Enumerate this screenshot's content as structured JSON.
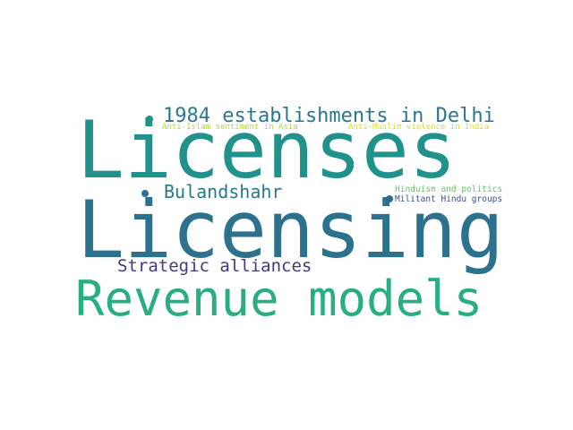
{
  "wordcloud": {
    "words": [
      {
        "key": "licenses",
        "text": "Licenses",
        "color": "#21918c"
      },
      {
        "key": "licensing",
        "text": "Licensing",
        "color": "#2c728e"
      },
      {
        "key": "revenue",
        "text": "Revenue models",
        "color": "#28ae80"
      },
      {
        "key": "delhi",
        "text": "1984 establishments in Delhi",
        "color": "#2a788e"
      },
      {
        "key": "bulandshahr",
        "text": "Bulandshahr",
        "color": "#2a788e"
      },
      {
        "key": "strategic",
        "text": "Strategic alliances",
        "color": "#443983"
      },
      {
        "key": "anti_islam",
        "text": "Anti-Islam sentiment in Asia",
        "color": "#addc30"
      },
      {
        "key": "anti_muslim",
        "text": "Anti-Muslim violence in India",
        "color": "#d8e219"
      },
      {
        "key": "hinduism",
        "text": "Hinduism and politics",
        "color": "#5ec962"
      },
      {
        "key": "militant",
        "text": "Militant Hindu groups",
        "color": "#3b528b"
      }
    ],
    "dot_colors": [
      "#21918c",
      "#2c728e",
      "#31688e"
    ]
  }
}
